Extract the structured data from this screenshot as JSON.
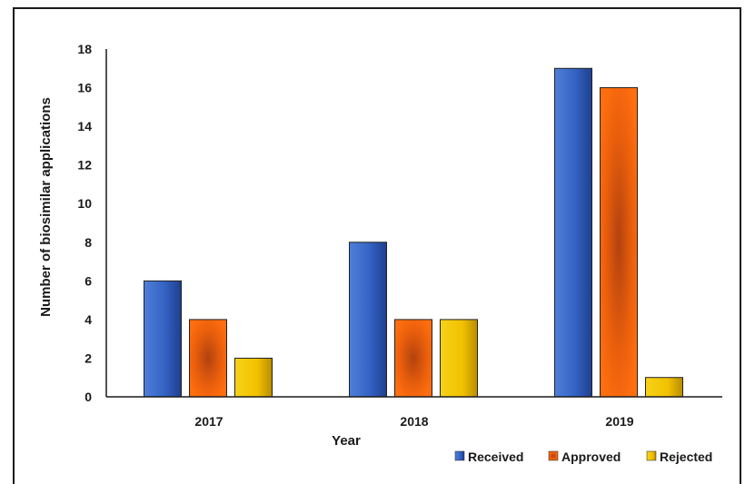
{
  "chart_data": {
    "type": "bar",
    "title": "",
    "xlabel": "Year",
    "ylabel": "Number of biosimilar applications",
    "categories": [
      "2017",
      "2018",
      "2019"
    ],
    "ylim": [
      0,
      18
    ],
    "yticks": [
      0,
      2,
      4,
      6,
      8,
      10,
      12,
      14,
      16,
      18
    ],
    "grid": false,
    "legend_position": "bottom-right",
    "series": [
      {
        "name": "Received",
        "values": [
          6,
          8,
          17
        ],
        "color": "#3a66c4"
      },
      {
        "name": "Approved",
        "values": [
          4,
          4,
          16
        ],
        "color": "#f26a0f"
      },
      {
        "name": "Rejected",
        "values": [
          2,
          4,
          1
        ],
        "color": "#f5c400"
      }
    ]
  }
}
